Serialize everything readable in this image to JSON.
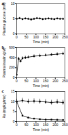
{
  "chart_data": [
    {
      "type": "line",
      "title": "a",
      "x_label": "Time (min)",
      "y_label": "Plasma glucose (mM)",
      "xlim": [
        0,
        250
      ],
      "xticks": [
        0,
        50,
        100,
        150,
        200,
        250
      ],
      "ylim": [
        0,
        10
      ],
      "yticks": [
        0,
        5,
        10
      ],
      "series": [
        {
          "color": "#000000",
          "marker": "circle",
          "x": [
            0,
            15,
            30,
            45,
            60,
            75,
            90,
            105,
            120,
            135,
            150,
            165,
            180,
            195,
            210,
            225,
            240
          ],
          "values": [
            5.0,
            5.2,
            4.9,
            5.1,
            5.0,
            4.8,
            5.0,
            5.2,
            5.1,
            4.9,
            5.0,
            5.1,
            5.0,
            4.9,
            5.1,
            5.0,
            5.0
          ],
          "errors": [
            0.3,
            0.3,
            0.3,
            0.3,
            0.3,
            0.3,
            0.3,
            0.3,
            0.3,
            0.3,
            0.3,
            0.3,
            0.3,
            0.3,
            0.3,
            0.3,
            0.3
          ]
        }
      ]
    },
    {
      "type": "line",
      "title": "b",
      "x_label": "Time (min)",
      "y_label": "Plasma insulin (pM)",
      "xlim": [
        0,
        250
      ],
      "xticks": [
        0,
        50,
        100,
        150,
        200,
        250
      ],
      "ylim": [
        0,
        600
      ],
      "yticks": [
        0,
        200,
        400,
        600
      ],
      "series": [
        {
          "color": "#000000",
          "marker": "circle",
          "x": [
            0,
            10,
            20,
            30,
            45,
            60,
            90,
            120,
            150,
            180,
            210,
            240
          ],
          "values": [
            60,
            380,
            330,
            390,
            400,
            410,
            430,
            440,
            450,
            460,
            470,
            480
          ],
          "errors": [
            10,
            30,
            30,
            30,
            30,
            30,
            30,
            30,
            30,
            30,
            30,
            30
          ]
        }
      ]
    },
    {
      "type": "line",
      "title": "c",
      "x_label": "Time (min)",
      "y_label": "Ra (mg/kg/min)",
      "xlim": [
        0,
        250
      ],
      "xticks": [
        0,
        50,
        100,
        150,
        200,
        250
      ],
      "ylim": [
        0,
        15
      ],
      "yticks": [
        0,
        5,
        10,
        15
      ],
      "series": [
        {
          "color": "#000000",
          "marker": "circle",
          "x": [
            0,
            30,
            60,
            90,
            120,
            150,
            180,
            210,
            240
          ],
          "values": [
            10,
            10.5,
            10,
            10.2,
            10,
            9.8,
            9.5,
            9.8,
            9.5
          ],
          "errors": [
            1.2,
            1.2,
            1.2,
            1.2,
            1.2,
            1.2,
            1.2,
            1.2,
            1.2
          ]
        },
        {
          "color": "#000000",
          "marker": "square",
          "x": [
            0,
            30,
            60,
            90,
            120,
            150,
            180,
            210,
            240
          ],
          "values": [
            10,
            3,
            2,
            1.5,
            1.2,
            1,
            1,
            0.9,
            0.8
          ],
          "errors": [
            0.3,
            0.3,
            0.3,
            0.3,
            0.3,
            0.3,
            0.3,
            0.3,
            0.3
          ]
        }
      ]
    }
  ]
}
